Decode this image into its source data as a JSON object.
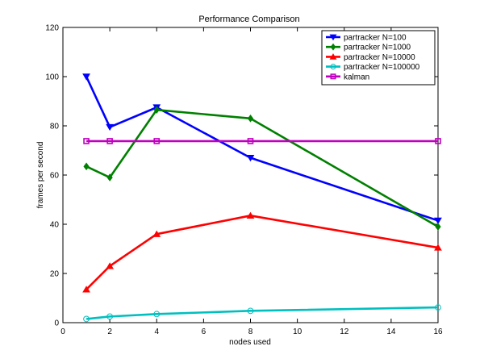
{
  "chart_data": {
    "type": "line",
    "title": "Performance Comparison",
    "xlabel": "nodes used",
    "ylabel": "frames per second",
    "xlim": [
      0,
      16
    ],
    "ylim": [
      0,
      120
    ],
    "xticks": [
      0,
      2,
      4,
      6,
      8,
      10,
      12,
      14,
      16
    ],
    "yticks": [
      0,
      20,
      40,
      60,
      80,
      100,
      120
    ],
    "grid": false,
    "legend_position": "top-right",
    "x": [
      1,
      2,
      4,
      8,
      16
    ],
    "series": [
      {
        "name": "partracker N=100",
        "color": "#0000ff",
        "marker": "triangle-down",
        "values": [
          100,
          79.5,
          87.5,
          67,
          41.5
        ]
      },
      {
        "name": "partracker N=1000",
        "color": "#008000",
        "marker": "diamond",
        "values": [
          63.5,
          59,
          86.5,
          83,
          39
        ]
      },
      {
        "name": "partracker N=10000",
        "color": "#ff0000",
        "marker": "triangle-up",
        "values": [
          13.5,
          23,
          36,
          43.5,
          30.5
        ]
      },
      {
        "name": "partracker N=100000",
        "color": "#00bfbf",
        "marker": "circle",
        "values": [
          1.5,
          2.5,
          3.5,
          4.8,
          6.2
        ]
      },
      {
        "name": "kalman",
        "color": "#bf00bf",
        "marker": "square",
        "values": [
          73.8,
          73.8,
          73.8,
          73.8,
          73.8
        ]
      }
    ]
  }
}
